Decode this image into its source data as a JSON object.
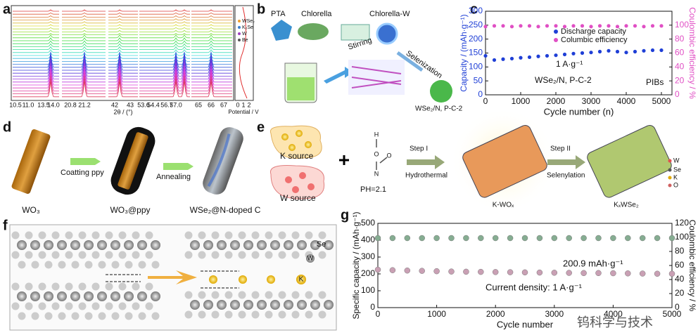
{
  "panel_labels": [
    "a",
    "b",
    "c",
    "d",
    "e",
    "f",
    "g"
  ],
  "panel_a": {
    "xticks": [
      "10.5",
      "11.0",
      "13.5",
      "14.0",
      "20.8",
      "21.2",
      "42",
      "43",
      "53.6",
      "54.4",
      "56.7",
      "57.0",
      "65",
      "66",
      "67"
    ],
    "xlabel": "2θ / (°)",
    "legend": [
      "WSe₂",
      "K₂Se",
      "W",
      "Be"
    ],
    "potential_ticks": [
      "0",
      "1",
      "2"
    ],
    "potential_label": "Potential / V"
  },
  "panel_b": {
    "pta": "PTA",
    "chlorella": "Chlorella",
    "chlorella_w": "Chlorella-W",
    "stirring": "Stirring",
    "selenization": "Selenization",
    "product": "WSe₂/N, P-C-2"
  },
  "panel_d": {
    "step1": "Coatting ppy",
    "step2": "Annealing",
    "label1": "WO₃",
    "label2": "WO₃@ppy",
    "label3": "WSe₂@N-doped C"
  },
  "panel_e": {
    "k_source": "K source",
    "w_source": "W source",
    "ph": "PH=2.1",
    "atoms": [
      "H",
      "O",
      "N",
      "O"
    ],
    "step1": "Step I",
    "step1_sub": "Hydrothermal",
    "step2": "Step II",
    "step2_sub": "Selenylation",
    "intermediate": "K-WOₓ",
    "product": "KₓWSe₂",
    "legend": [
      "W",
      "Se",
      "K",
      "O"
    ]
  },
  "panel_f": {
    "se": "Se",
    "w": "W",
    "k": "K"
  },
  "watermark": "钨科学与技术",
  "chart_data": [
    {
      "type": "scatter",
      "xlabel": "Cycle number (n)",
      "ylabel": "Capacity / (mAh·g⁻¹)",
      "y2label": "Coulombic efficiency / %",
      "xlim": [
        0,
        5300
      ],
      "ylim": [
        0,
        300
      ],
      "y2lim": [
        0,
        120
      ],
      "xticks": [
        0,
        1000,
        2000,
        3000,
        4000,
        5000
      ],
      "yticks": [
        0,
        50,
        100,
        150,
        200,
        250,
        300
      ],
      "y2ticks": [
        0,
        20,
        40,
        60,
        80,
        100
      ],
      "x": [
        0,
        250,
        500,
        750,
        1000,
        1250,
        1500,
        1750,
        2000,
        2250,
        2500,
        2750,
        3000,
        3250,
        3500,
        3750,
        4000,
        4250,
        4500,
        4750,
        5000
      ],
      "series": [
        {
          "name": "Discharge capacity",
          "color": "#1f3fd6",
          "values": [
            140,
            125,
            128,
            130,
            133,
            135,
            138,
            140,
            142,
            145,
            148,
            150,
            152,
            155,
            158,
            155,
            152,
            155,
            158,
            160,
            160
          ]
        },
        {
          "name": "Columbic efficiency",
          "color": "#e04fc4",
          "axis": "y2",
          "values": [
            98,
            99,
            99,
            98,
            99,
            99,
            98,
            99,
            99,
            98,
            99,
            99,
            98,
            99,
            99,
            98,
            99,
            99,
            98,
            99,
            99
          ]
        }
      ],
      "annotations": [
        "1 A·g⁻¹",
        "WSe₂/N, P-C-2",
        "PIBs"
      ]
    },
    {
      "type": "scatter",
      "xlabel": "Cycle number",
      "ylabel": "Specific capacity / (mAh·g⁻¹)",
      "y2label": "Coulombic efficiency / %",
      "xlim": [
        0,
        5000
      ],
      "ylim": [
        0,
        500
      ],
      "y2lim": [
        0,
        120
      ],
      "xticks": [
        0,
        1000,
        2000,
        3000,
        4000,
        5000
      ],
      "yticks": [
        0,
        100,
        200,
        300,
        400,
        500
      ],
      "y2ticks": [
        0,
        20,
        40,
        60,
        80,
        100,
        120
      ],
      "x": [
        0,
        250,
        500,
        750,
        1000,
        1250,
        1500,
        1750,
        2000,
        2250,
        2500,
        2750,
        3000,
        3250,
        3500,
        3750,
        4000,
        4250,
        4500,
        4750,
        5000
      ],
      "series": [
        {
          "color": "#c9a0b4",
          "values": [
            225,
            222,
            220,
            218,
            216,
            214,
            213,
            212,
            211,
            210,
            209,
            208,
            207,
            206,
            205,
            205,
            204,
            203,
            202,
            201,
            200.9
          ]
        },
        {
          "color": "#86ad92",
          "axis": "y2",
          "values": [
            99,
            99,
            99,
            99,
            99,
            99,
            99,
            99,
            99,
            99,
            99,
            99,
            99,
            99,
            99,
            99,
            99,
            99,
            99,
            99,
            99
          ]
        }
      ],
      "annotations": [
        "200.9 mAh·g⁻¹",
        "Current density: 1 A·g⁻¹"
      ]
    }
  ]
}
